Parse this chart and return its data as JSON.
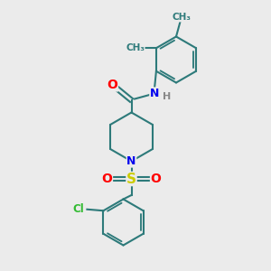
{
  "bg_color": "#ebebeb",
  "bond_color": "#2d7a7a",
  "atom_colors": {
    "O": "#ff0000",
    "N": "#0000ee",
    "S": "#cccc00",
    "Cl": "#33bb33",
    "H": "#888888",
    "C": "#2d7a7a"
  },
  "bond_width": 1.5,
  "font_size": 9
}
